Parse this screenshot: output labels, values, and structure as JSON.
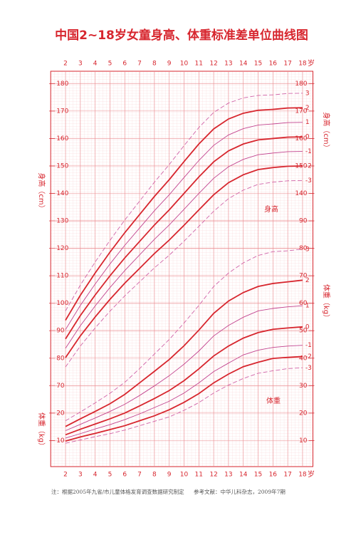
{
  "chart_data": {
    "type": "line",
    "title": "中国2~18岁女童身高、体重标准差单位曲线图",
    "x_unit": "岁",
    "x": [
      2,
      3,
      4,
      5,
      6,
      7,
      8,
      9,
      10,
      11,
      12,
      13,
      14,
      15,
      16,
      17,
      18
    ],
    "xlim": [
      1,
      18.7
    ],
    "xticks": [
      2,
      3,
      4,
      5,
      6,
      7,
      8,
      9,
      10,
      11,
      12,
      13,
      14,
      15,
      16,
      17,
      18
    ],
    "ylabel": "身高（cm）",
    "ylim": [
      40.5,
      184.5
    ],
    "yticks": [
      70,
      80,
      90,
      100,
      110,
      120,
      130,
      140,
      150,
      160,
      170,
      180
    ],
    "yticks_right": [
      140,
      150,
      160,
      170,
      180
    ],
    "y2label": "体重（kg）",
    "y2lim": [
      0.5,
      144.5
    ],
    "y2ticks": [
      10,
      20,
      30,
      40,
      50,
      60,
      70,
      80,
      90
    ],
    "y2ticks_left": [
      10,
      20
    ],
    "grid": true,
    "annotations": [
      "身高",
      "体重"
    ],
    "footnotes": [
      "注：根据2005年九省/市儿童体格发育调查数据研究制定",
      "参考文献：中华儿科杂志，2009年7期"
    ],
    "series": [
      {
        "name": "3",
        "axis": "y",
        "color": "#d063a8",
        "dashed": true,
        "bold": false,
        "values": [
          97.2,
          106.6,
          115,
          122.9,
          130.3,
          137.2,
          144.1,
          150.5,
          157.4,
          164,
          169.5,
          172.9,
          174.8,
          175.7,
          175.9,
          176.4,
          176.5
        ]
      },
      {
        "name": "2",
        "axis": "y",
        "color": "#d7262e",
        "dashed": false,
        "bold": true,
        "values": [
          93.8,
          102.9,
          111,
          118.6,
          125.7,
          132.3,
          138.9,
          145,
          151.6,
          158,
          163.5,
          167.1,
          169.2,
          170.3,
          170.6,
          171.1,
          171.2
        ]
      },
      {
        "name": "1",
        "axis": "y",
        "color": "#c2448f",
        "dashed": false,
        "bold": false,
        "values": [
          90.4,
          99.2,
          107,
          114.3,
          121.1,
          127.4,
          133.7,
          139.5,
          145.8,
          152,
          157.5,
          161.3,
          163.6,
          164.9,
          165.3,
          165.8,
          165.9
        ]
      },
      {
        "name": "0",
        "axis": "y",
        "color": "#d7262e",
        "dashed": false,
        "bold": true,
        "values": [
          87,
          95.5,
          103,
          110,
          116.5,
          122.5,
          128.5,
          134,
          140,
          146,
          151.5,
          155.5,
          158,
          159.5,
          160,
          160.5,
          160.6
        ]
      },
      {
        "name": "-1",
        "axis": "y",
        "color": "#c2448f",
        "dashed": false,
        "bold": false,
        "values": [
          83.6,
          91.8,
          99,
          105.7,
          111.9,
          117.6,
          123.3,
          128.5,
          134.2,
          140,
          145.5,
          149.7,
          152.4,
          154.1,
          154.7,
          155.2,
          155.3
        ]
      },
      {
        "name": "-2",
        "axis": "y",
        "color": "#d7262e",
        "dashed": false,
        "bold": true,
        "values": [
          80.2,
          88.1,
          95,
          101.4,
          107.3,
          112.7,
          118.1,
          123,
          128.4,
          134,
          139.5,
          143.9,
          146.8,
          148.7,
          149.4,
          149.9,
          150
        ]
      },
      {
        "name": "-3",
        "axis": "y",
        "color": "#d063a8",
        "dashed": true,
        "bold": false,
        "values": [
          76.8,
          84.4,
          91,
          97.1,
          102.7,
          107.8,
          112.9,
          117.5,
          122.6,
          128,
          133.5,
          138.1,
          141.2,
          143.3,
          144.1,
          144.6,
          144.7
        ]
      },
      {
        "name": "3",
        "axis": "y2",
        "color": "#d063a8",
        "dashed": true,
        "bold": false,
        "values": [
          17.2,
          20.4,
          23.7,
          27.2,
          31.2,
          36.2,
          41.5,
          46.8,
          52.8,
          59.2,
          66.1,
          71.0,
          74.7,
          77.4,
          78.8,
          79.1,
          79.7
        ]
      },
      {
        "name": "2",
        "axis": "y2",
        "color": "#d7262e",
        "dashed": false,
        "bold": true,
        "values": [
          15.1,
          17.9,
          20.6,
          23.4,
          26.8,
          31.0,
          35.2,
          39.5,
          44.5,
          50.2,
          56.3,
          60.8,
          63.9,
          66.1,
          67.2,
          67.8,
          68.4
        ]
      },
      {
        "name": "1",
        "axis": "y2",
        "color": "#c2448f",
        "dashed": false,
        "bold": false,
        "values": [
          13.6,
          15.9,
          18.2,
          20.6,
          23.2,
          26.4,
          29.9,
          33.6,
          37.8,
          42.6,
          48.1,
          51.9,
          54.9,
          57.2,
          58.1,
          58.7,
          59.1
        ]
      },
      {
        "name": "0",
        "axis": "y2",
        "color": "#d7262e",
        "dashed": false,
        "bold": true,
        "values": [
          12.1,
          14.1,
          16.0,
          17.9,
          20.0,
          22.6,
          25.3,
          28.2,
          31.8,
          36.1,
          40.8,
          44.4,
          47.3,
          49.3,
          50.5,
          51.0,
          51.4
        ]
      },
      {
        "name": "-1",
        "axis": "y2",
        "color": "#c2448f",
        "dashed": false,
        "bold": false,
        "values": [
          10.9,
          12.5,
          14.2,
          15.8,
          17.6,
          19.7,
          22.0,
          24.3,
          27.3,
          31.0,
          35.1,
          38.2,
          41.2,
          42.9,
          43.9,
          44.4,
          44.7
        ]
      },
      {
        "name": "-2",
        "axis": "y2",
        "color": "#d7262e",
        "dashed": false,
        "bold": true,
        "values": [
          9.8,
          11.3,
          12.6,
          14.0,
          15.4,
          17.2,
          19.0,
          21.2,
          23.9,
          27.1,
          31.0,
          34.2,
          36.9,
          38.5,
          39.9,
          40.3,
          40.6
        ]
      },
      {
        "name": "-3",
        "axis": "y2",
        "color": "#d063a8",
        "dashed": true,
        "bold": false,
        "values": [
          9.0,
          10.2,
          11.4,
          12.5,
          13.8,
          15.4,
          17.0,
          18.6,
          21.0,
          23.8,
          27.3,
          30.2,
          32.6,
          34.5,
          35.4,
          36.2,
          36.5
        ]
      }
    ]
  }
}
